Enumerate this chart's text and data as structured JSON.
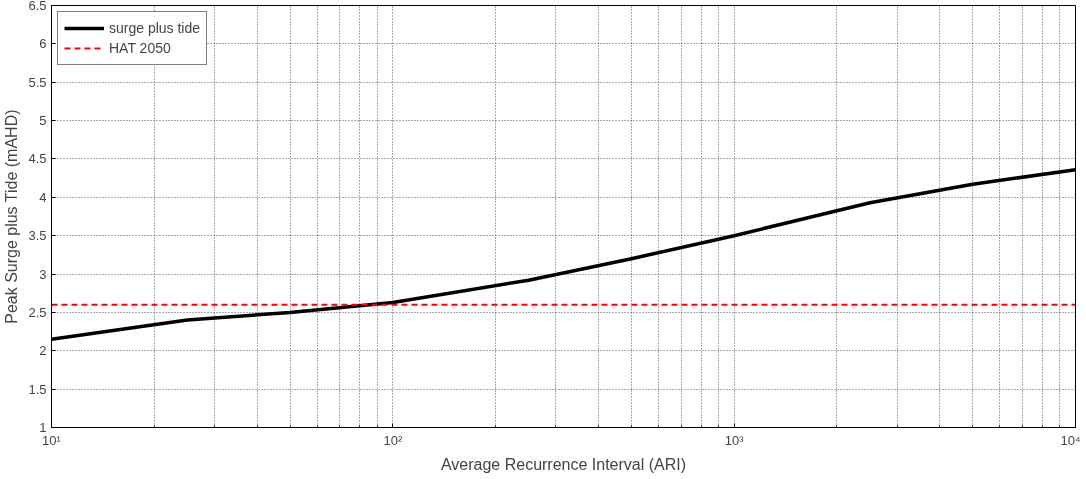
{
  "chart_data": {
    "type": "line",
    "xlabel": "Average Recurrence Interval (ARI)",
    "ylabel": "Peak Surge plus Tide (mAHD)",
    "log": "x",
    "xlim": [
      10,
      10000
    ],
    "ylim": [
      1,
      6.5
    ],
    "xticks": [
      {
        "value": 10,
        "label": "10¹"
      },
      {
        "value": 100,
        "label": "10²"
      },
      {
        "value": 1000,
        "label": "10³"
      },
      {
        "value": 10000,
        "label": "10⁴"
      }
    ],
    "yticks": [
      1,
      1.5,
      2,
      2.5,
      3,
      3.5,
      4,
      4.5,
      5,
      5.5,
      6,
      6.5
    ],
    "x": [
      10,
      25,
      50,
      100,
      250,
      500,
      1000,
      2500,
      5000,
      10000
    ],
    "series": [
      {
        "name": "surge plus tide",
        "color": "#000000",
        "values": [
          2.15,
          2.4,
          2.5,
          2.63,
          2.92,
          3.2,
          3.5,
          3.93,
          4.17,
          4.36
        ]
      }
    ],
    "ref_lines": [
      {
        "axis": "y",
        "value": 2.6,
        "label": "HAT 2050",
        "color": "#ff0000",
        "line_style": "dashed"
      }
    ],
    "grid": true,
    "legend": "top left",
    "line_style": "solid",
    "marker": "none"
  }
}
